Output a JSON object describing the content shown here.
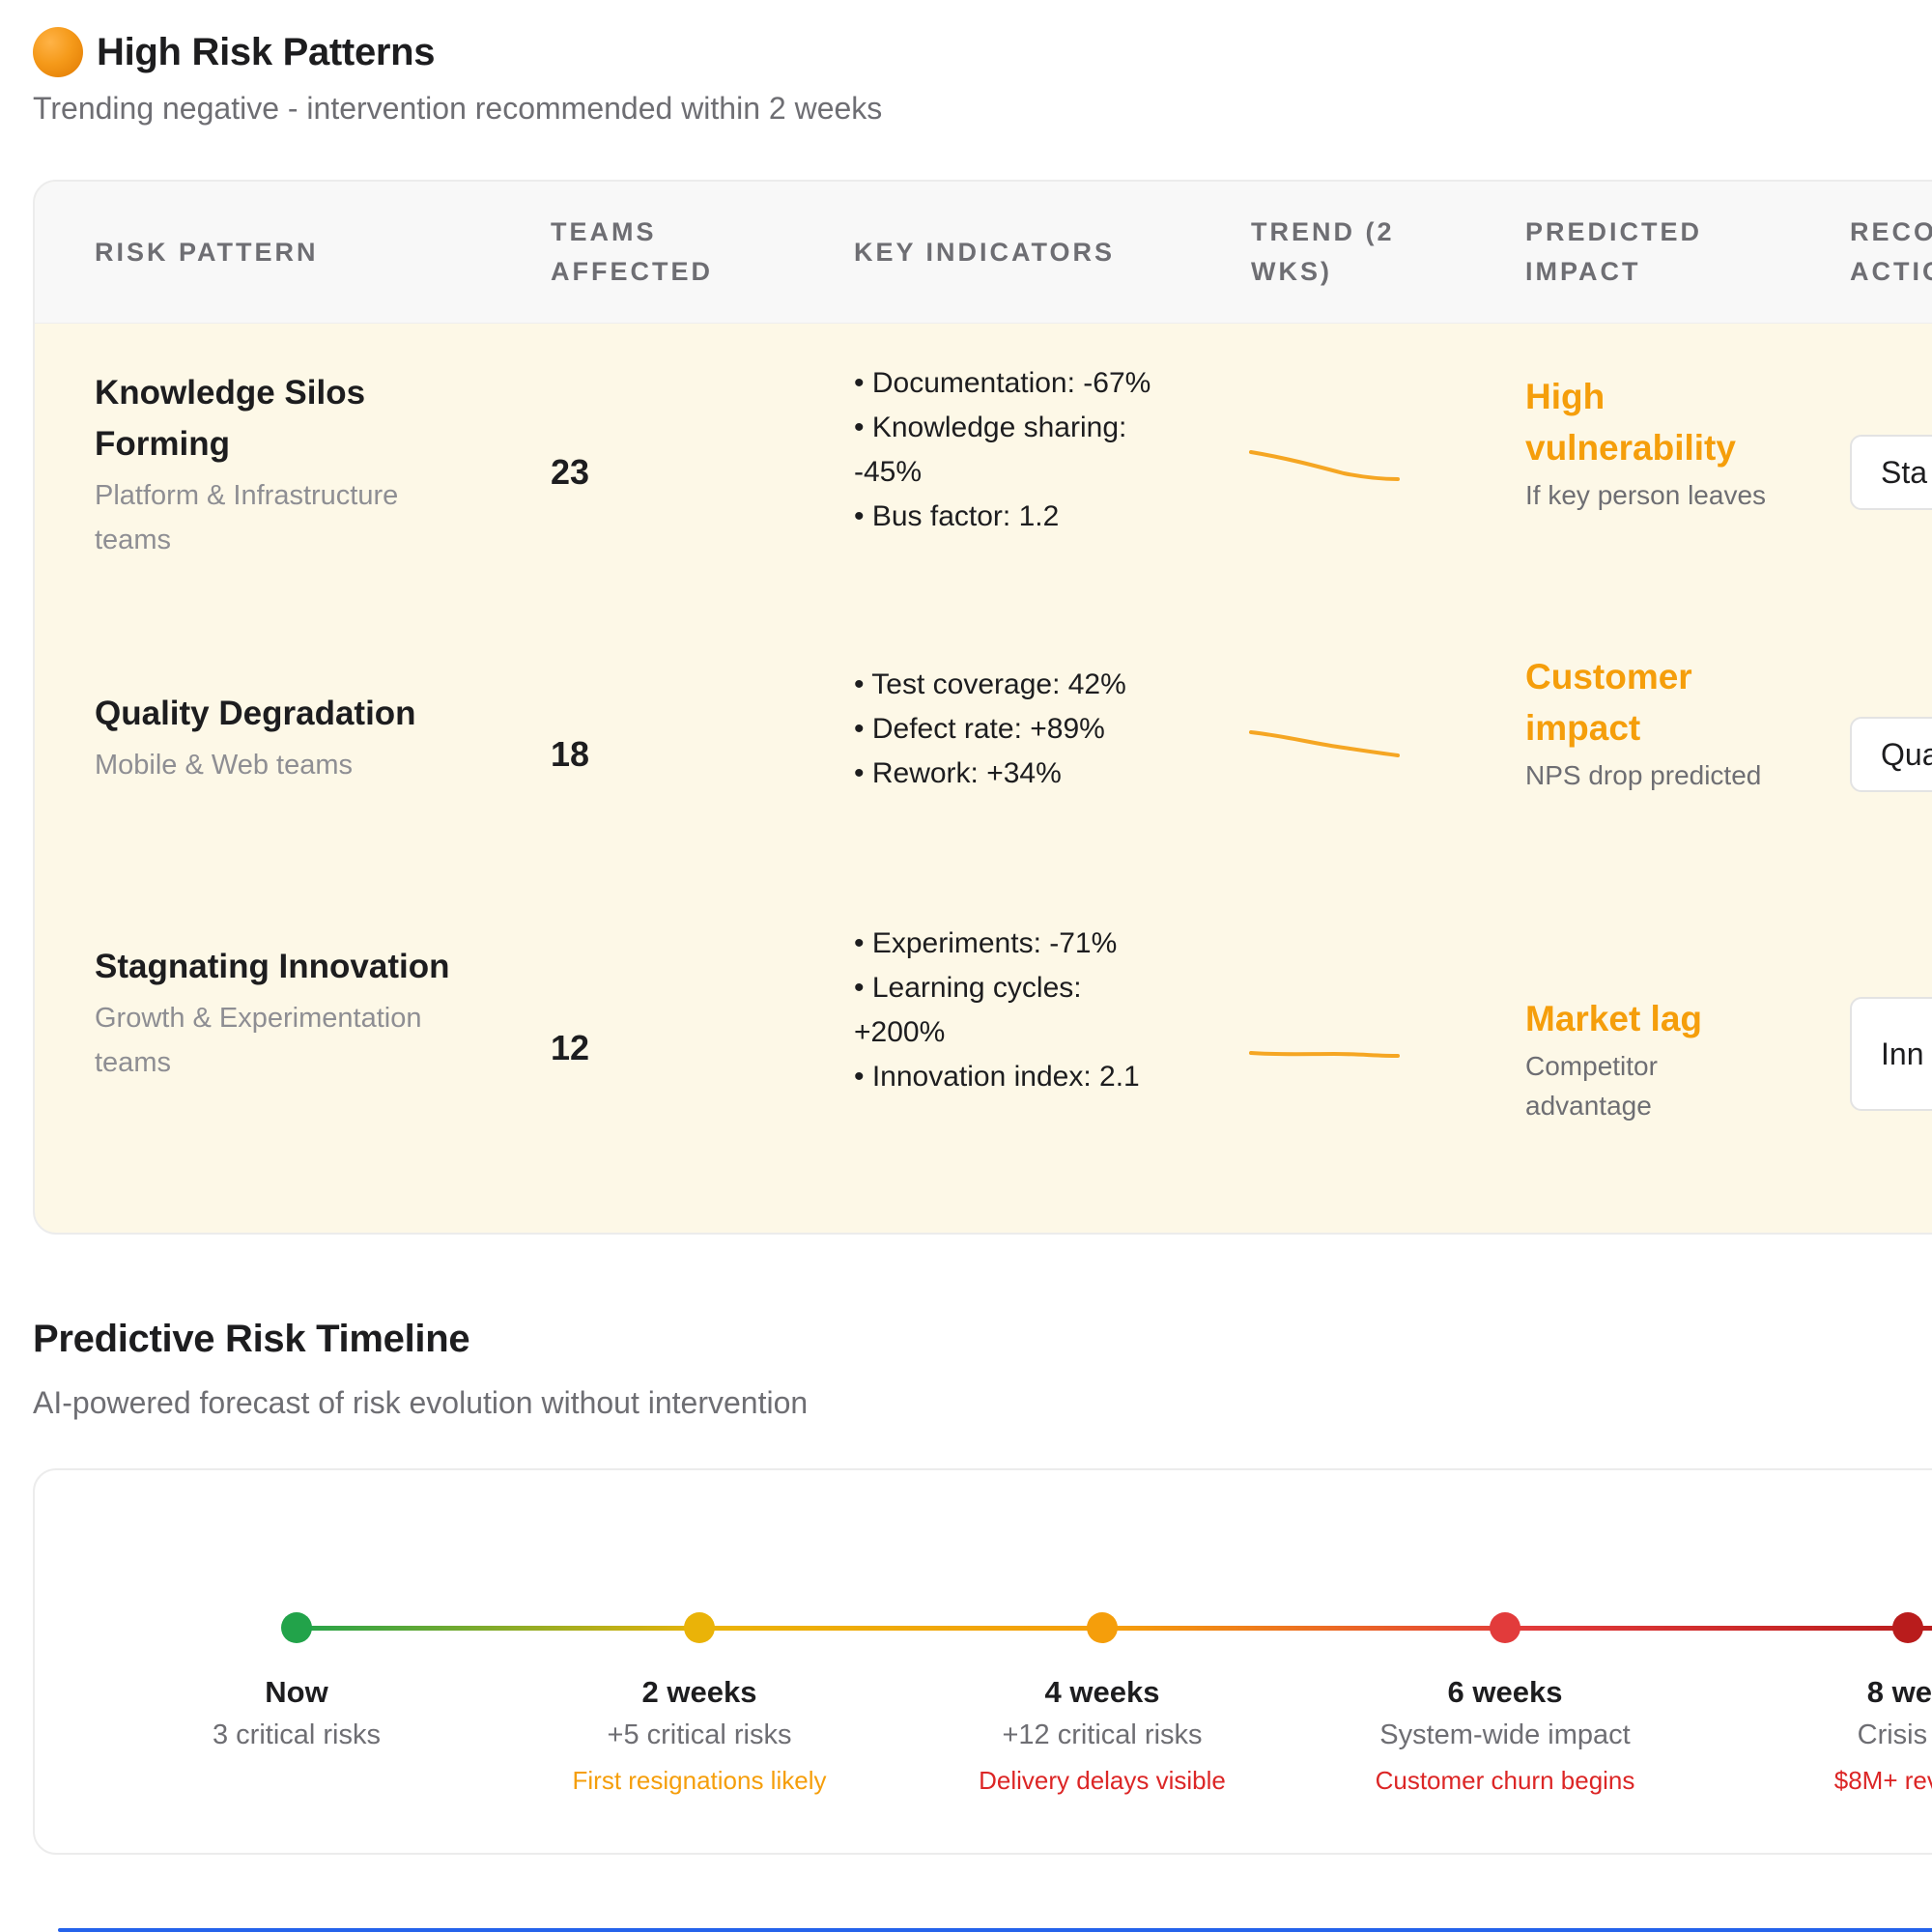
{
  "high_risk": {
    "title": "High Risk Patterns",
    "subtitle": "Trending negative - intervention recommended within 2 weeks",
    "columns": [
      "RISK PATTERN",
      "TEAMS AFFECTED",
      "KEY INDICATORS",
      "TREND (2 WKS)",
      "PREDICTED IMPACT",
      "RECO ACTIO"
    ],
    "rows": [
      {
        "name": "Knowledge Silos Forming",
        "teams": "Platform & Infrastructure teams",
        "count": "23",
        "indicators": [
          "• Documentation: -67%",
          "• Knowledge sharing: -45%",
          "• Bus factor: 1.2"
        ],
        "impact_title": "High vulnerability",
        "impact_desc": "If key person leaves",
        "action": "Sta"
      },
      {
        "name": "Quality Degradation",
        "teams": "Mobile & Web teams",
        "count": "18",
        "indicators": [
          "• Test coverage: 42%",
          "• Defect rate: +89%",
          "• Rework: +34%"
        ],
        "impact_title": "Customer impact",
        "impact_desc": "NPS drop predicted",
        "action": "Qua"
      },
      {
        "name": "Stagnating Innovation",
        "teams": "Growth & Experimentation teams",
        "count": "12",
        "indicators": [
          "• Experiments: -71%",
          "• Learning cycles: +200%",
          "• Innovation index: 2.1"
        ],
        "impact_title": "Market lag",
        "impact_desc": "Competitor advantage",
        "action": "Inn"
      }
    ],
    "colors": {
      "impact": "#f59e0b",
      "row_bg": "#fdf8e7",
      "trend_line": "#f5a623"
    }
  },
  "timeline": {
    "title": "Predictive Risk Timeline",
    "subtitle": "AI-powered forecast of risk evolution without intervention",
    "points": [
      {
        "when": "Now",
        "what": "3 critical risks",
        "effect": "",
        "color": "#22a34a",
        "effect_color": "#f59e0b"
      },
      {
        "when": "2 weeks",
        "what": "+5 critical risks",
        "effect": "First resignations likely",
        "color": "#eab308",
        "effect_color": "#f59e0b"
      },
      {
        "when": "4 weeks",
        "what": "+12 critical risks",
        "effect": "Delivery delays visible",
        "color": "#f59e0b",
        "effect_color": "#dc2626"
      },
      {
        "when": "6 weeks",
        "what": "System-wide impact",
        "effect": "Customer churn begins",
        "color": "#e23b3b",
        "effect_color": "#dc2626"
      },
      {
        "when": "8 wee",
        "what": "Crisis m",
        "effect": "$8M+ revenu",
        "color": "#b91c1c",
        "effect_color": "#dc2626"
      }
    ]
  }
}
